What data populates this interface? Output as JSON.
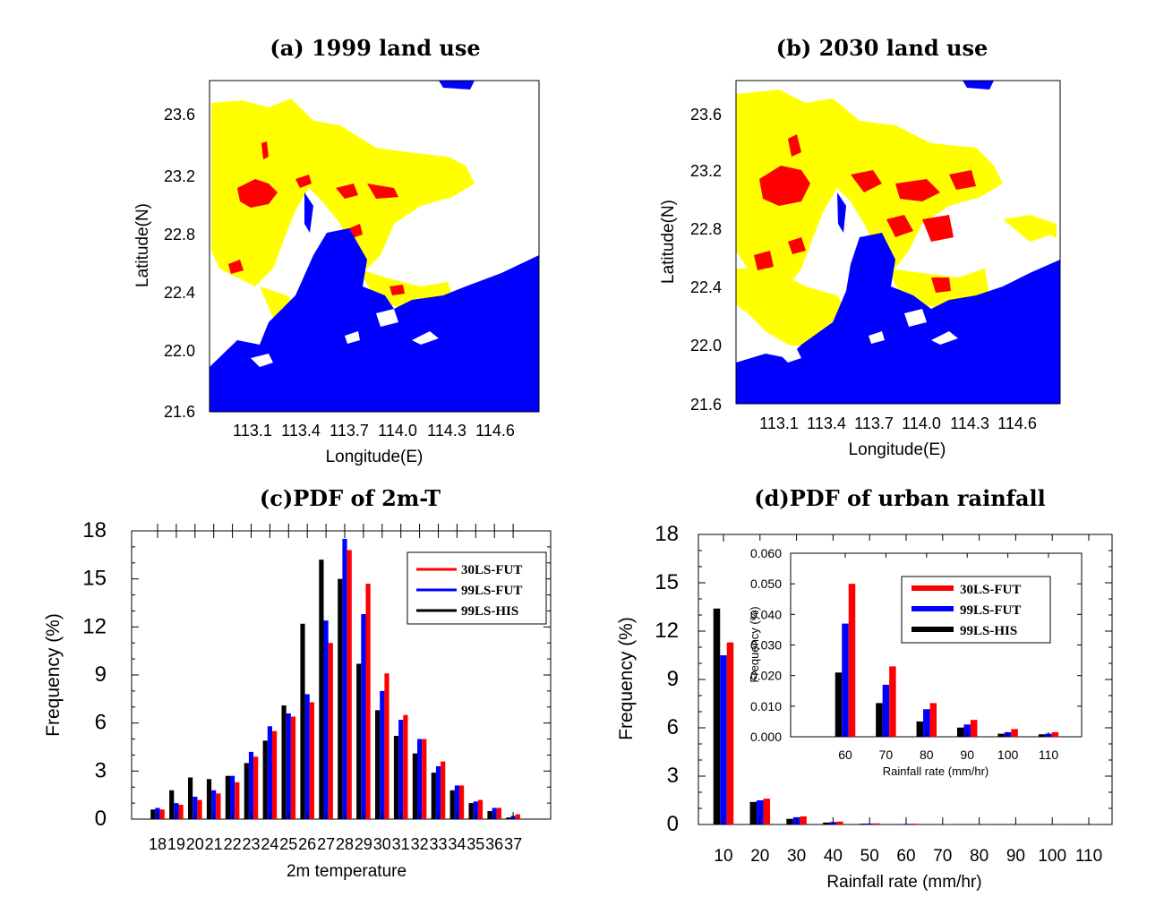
{
  "chart_data": [
    {
      "type": "heatmap",
      "panel": "a",
      "title": "(a) 1999 land use",
      "xlabel": "Longitude(E)",
      "ylabel": "Latitude(N)",
      "xticks": [
        "113.1",
        "113.4",
        "113.7",
        "114.0",
        "114.3",
        "114.6"
      ],
      "yticks": [
        "23.6",
        "23.2",
        "22.8",
        "22.4",
        "22.0",
        "21.6"
      ],
      "colors": {
        "water": "#0000ff",
        "land": "#ffffff",
        "suburban": "#ffff00",
        "urban": "#ff0000"
      }
    },
    {
      "type": "heatmap",
      "panel": "b",
      "title": "(b) 2030 land use",
      "xlabel": "Longitude(E)",
      "ylabel": "Latitude(N)",
      "xticks": [
        "113.1",
        "113.4",
        "113.7",
        "114.0",
        "114.3",
        "114.6"
      ],
      "yticks": [
        "23.6",
        "23.2",
        "22.8",
        "22.4",
        "22.0",
        "21.6"
      ],
      "colors": {
        "water": "#0000ff",
        "land": "#ffffff",
        "suburban": "#ffff00",
        "urban": "#ff0000"
      }
    },
    {
      "type": "bar",
      "panel": "c",
      "title": "(c)PDF of 2m-T",
      "xlabel": "2m temperature",
      "ylabel": "Frequency (%)",
      "ylim": [
        0,
        18
      ],
      "yticks": [
        "0",
        "3",
        "6",
        "9",
        "12",
        "15",
        "18"
      ],
      "categories": [
        "18",
        "19",
        "20",
        "21",
        "22",
        "23",
        "24",
        "25",
        "26",
        "27",
        "28",
        "29",
        "30",
        "31",
        "32",
        "33",
        "34",
        "35",
        "36",
        "37"
      ],
      "series": [
        {
          "name": "99LS-HIS",
          "color": "#000000",
          "values": [
            0.6,
            1.8,
            2.6,
            2.5,
            2.7,
            3.5,
            4.9,
            7.1,
            12.2,
            16.2,
            15.0,
            9.7,
            6.8,
            5.2,
            4.1,
            2.9,
            1.8,
            1.0,
            0.5,
            0.1
          ]
        },
        {
          "name": "99LS-FUT",
          "color": "#0000ff",
          "values": [
            0.7,
            1.0,
            1.4,
            1.8,
            2.7,
            4.2,
            5.8,
            6.6,
            7.8,
            12.4,
            17.5,
            12.8,
            8.0,
            6.2,
            5.0,
            3.3,
            2.1,
            1.1,
            0.7,
            0.2
          ]
        },
        {
          "name": "30LS-FUT",
          "color": "#ff0000",
          "values": [
            0.6,
            0.9,
            1.2,
            1.6,
            2.3,
            3.9,
            5.5,
            6.4,
            7.3,
            11.0,
            16.8,
            14.7,
            9.1,
            6.5,
            5.0,
            3.6,
            2.1,
            1.2,
            0.7,
            0.3
          ]
        }
      ],
      "legend": {
        "position": "top-right",
        "order": [
          "30LS-FUT",
          "99LS-FUT",
          "99LS-HIS"
        ]
      }
    },
    {
      "type": "bar",
      "panel": "d",
      "title": "(d)PDF of urban rainfall",
      "xlabel": "Rainfall rate (mm/hr)",
      "ylabel": "Frequency (%)",
      "ylim": [
        0,
        18
      ],
      "yticks": [
        "0",
        "3",
        "6",
        "9",
        "12",
        "15",
        "18"
      ],
      "categories": [
        "10",
        "20",
        "30",
        "40",
        "50",
        "60",
        "70",
        "80",
        "90",
        "100",
        "110"
      ],
      "series": [
        {
          "name": "99LS-HIS",
          "color": "#000000",
          "values": [
            13.4,
            1.4,
            0.35,
            0.12,
            0.05,
            0.02,
            0.011,
            0.005,
            0.003,
            0.001,
            0.001
          ]
        },
        {
          "name": "99LS-FUT",
          "color": "#0000ff",
          "values": [
            10.5,
            1.5,
            0.45,
            0.15,
            0.06,
            0.04,
            0.017,
            0.009,
            0.004,
            0.002,
            0.001
          ]
        },
        {
          "name": "30LS-FUT",
          "color": "#ff0000",
          "values": [
            11.3,
            1.6,
            0.5,
            0.18,
            0.07,
            0.05,
            0.023,
            0.011,
            0.005,
            0.0025,
            0.0015
          ]
        }
      ],
      "inset": {
        "xlabel": "Rainfall rate (mm/hr)",
        "ylabel": "Frequency (%)",
        "ylim": [
          0,
          0.06
        ],
        "yticks": [
          "0.000",
          "0.010",
          "0.020",
          "0.030",
          "0.040",
          "0.050",
          "0.060"
        ],
        "categories": [
          "60",
          "70",
          "80",
          "90",
          "100",
          "110"
        ],
        "series": [
          {
            "name": "99LS-HIS",
            "color": "#000000",
            "values": [
              0.021,
              0.011,
              0.005,
              0.003,
              0.001,
              0.0008
            ]
          },
          {
            "name": "99LS-FUT",
            "color": "#0000ff",
            "values": [
              0.037,
              0.017,
              0.009,
              0.004,
              0.0015,
              0.001
            ]
          },
          {
            "name": "30LS-FUT",
            "color": "#ff0000",
            "values": [
              0.05,
              0.023,
              0.011,
              0.0055,
              0.0025,
              0.0015
            ]
          }
        ]
      },
      "legend": {
        "position": "inside-inset",
        "order": [
          "30LS-FUT",
          "99LS-FUT",
          "99LS-HIS"
        ]
      }
    }
  ]
}
